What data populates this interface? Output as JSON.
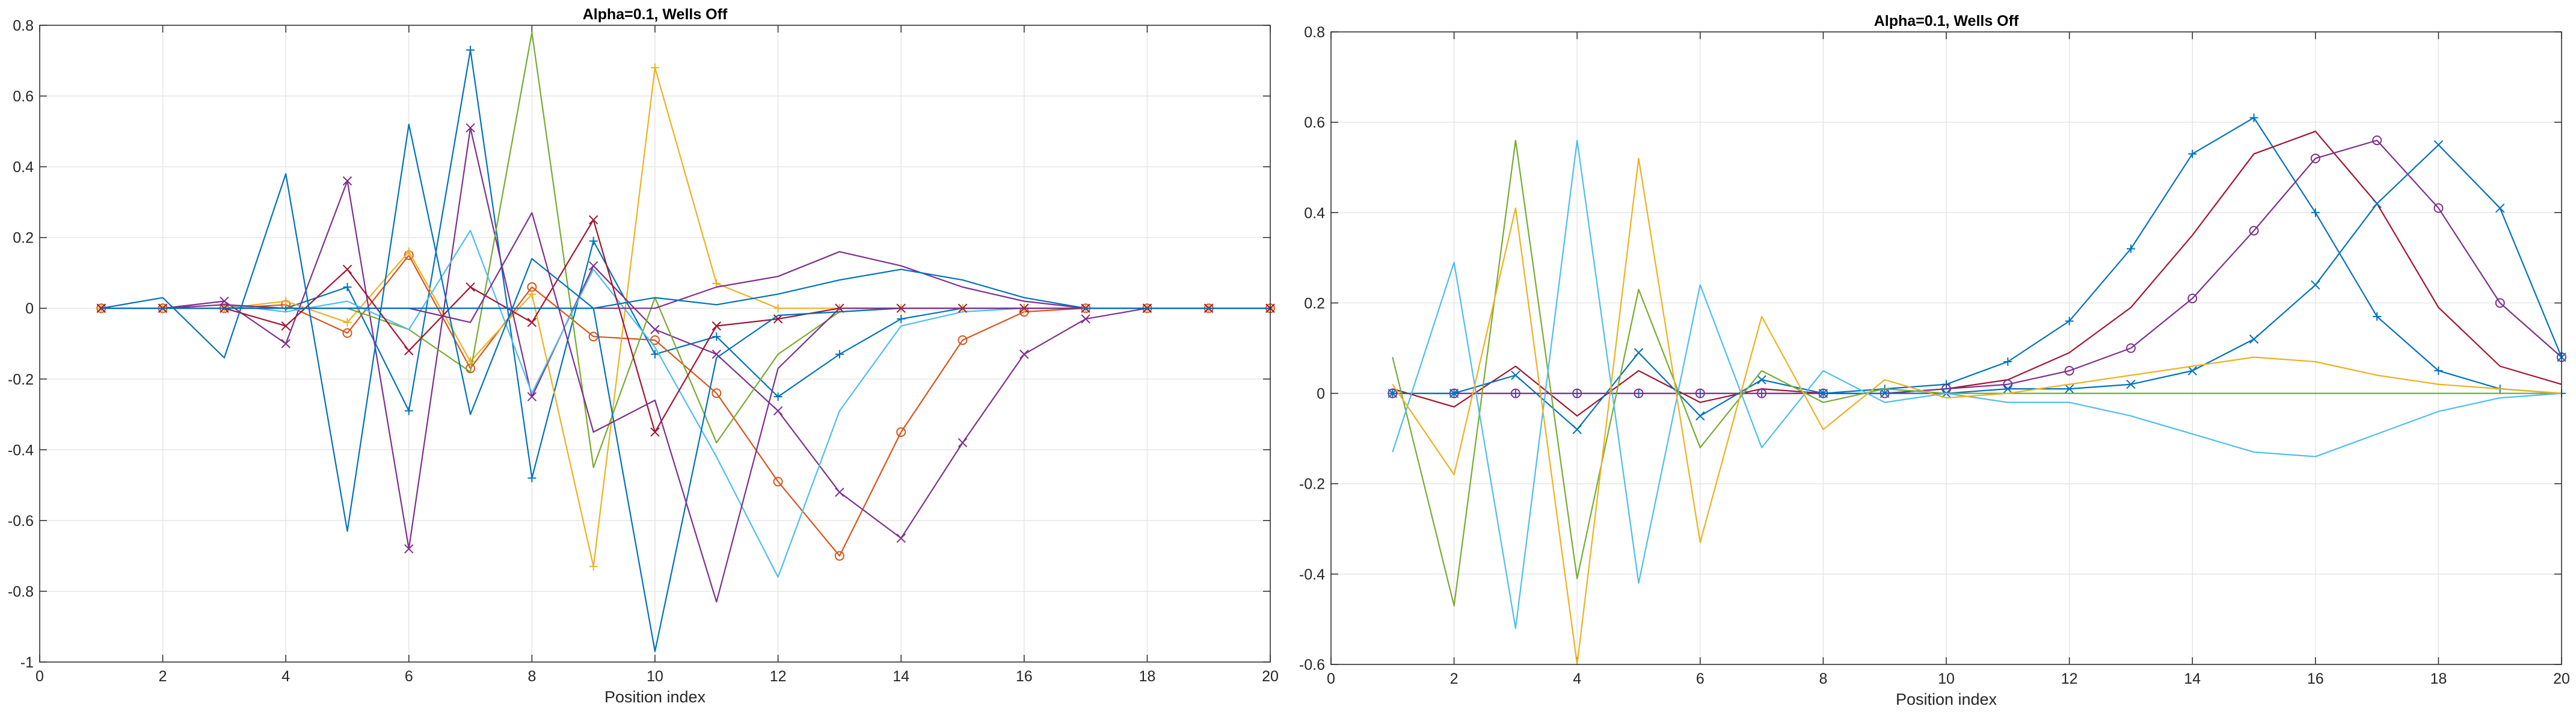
{
  "chart_data": [
    {
      "type": "line",
      "title": "Alpha=0.1, Wells Off",
      "xlabel": "Position index",
      "ylabel": "",
      "xlim": [
        0,
        20
      ],
      "ylim": [
        -1,
        0.8
      ],
      "xticks": [
        "0",
        "2",
        "4",
        "6",
        "8",
        "10",
        "12",
        "14",
        "16",
        "18",
        "20"
      ],
      "yticks": [
        "-1",
        "-0.8",
        "-0.6",
        "-0.4",
        "-0.2",
        "0",
        "0.2",
        "0.4",
        "0.6",
        "0.8"
      ],
      "grid": true,
      "x": [
        1,
        2,
        3,
        4,
        5,
        6,
        7,
        8,
        9,
        10,
        11,
        12,
        13,
        14,
        15,
        16,
        17,
        18,
        19,
        20
      ],
      "series": [
        {
          "color": "#0072BD",
          "marker": "plus",
          "values": [
            0,
            0,
            0,
            0,
            0.06,
            -0.29,
            0.73,
            -0.48,
            0.19,
            -0.13,
            -0.08,
            -0.25,
            -0.13,
            -0.03,
            0,
            0,
            0,
            0,
            0,
            0
          ]
        },
        {
          "color": "#D95319",
          "marker": "circle",
          "values": [
            0,
            0,
            0,
            0.01,
            -0.07,
            0.15,
            -0.17,
            0.06,
            -0.08,
            -0.09,
            -0.24,
            -0.49,
            -0.7,
            -0.35,
            -0.09,
            -0.01,
            0,
            0,
            0,
            0
          ]
        },
        {
          "color": "#EDB120",
          "marker": "plus",
          "values": [
            0,
            0,
            0,
            0.02,
            -0.04,
            0.16,
            -0.15,
            0.04,
            -0.73,
            0.68,
            0.07,
            0,
            0,
            0,
            0,
            0,
            0,
            0,
            0,
            0
          ]
        },
        {
          "color": "#7E2F8E",
          "marker": "x",
          "values": [
            0,
            0,
            0.02,
            -0.1,
            0.36,
            -0.68,
            0.51,
            -0.25,
            0.12,
            -0.06,
            -0.13,
            -0.29,
            -0.52,
            -0.65,
            -0.38,
            -0.13,
            -0.03,
            0,
            0,
            0
          ]
        },
        {
          "color": "#77AC30",
          "marker": "none",
          "values": [
            0,
            0,
            0,
            0,
            0,
            -0.06,
            -0.18,
            0.78,
            -0.45,
            0.03,
            -0.38,
            -0.13,
            -0.01,
            0,
            0,
            0,
            0,
            0,
            0,
            0
          ]
        },
        {
          "color": "#4DBEEE",
          "marker": "none",
          "values": [
            0,
            0,
            0.01,
            -0.01,
            0.02,
            -0.06,
            0.22,
            -0.24,
            0.11,
            -0.11,
            -0.42,
            -0.76,
            -0.29,
            -0.05,
            -0.01,
            0,
            0,
            0,
            0,
            0
          ]
        },
        {
          "color": "#A2142F",
          "marker": "x",
          "values": [
            0,
            0,
            0,
            -0.05,
            0.11,
            -0.12,
            0.06,
            -0.04,
            0.25,
            -0.35,
            -0.05,
            -0.03,
            0,
            0,
            0,
            0,
            0,
            0,
            0,
            0
          ]
        },
        {
          "color": "#0072BD",
          "marker": "none",
          "values": [
            0,
            0.03,
            -0.14,
            0.38,
            -0.63,
            0.52,
            -0.3,
            0.14,
            0,
            -0.97,
            -0.14,
            -0.02,
            -0.01,
            0,
            0,
            0,
            0,
            0,
            0,
            0
          ]
        },
        {
          "color": "#7E2F8E",
          "marker": "none",
          "values": [
            0,
            0,
            0.01,
            0,
            0,
            0,
            -0.04,
            0.27,
            -0.35,
            -0.26,
            -0.83,
            -0.17,
            0,
            0,
            0,
            0,
            0,
            0,
            0,
            0
          ]
        },
        {
          "color": "#7E2F8E",
          "marker": "none",
          "values": [
            0,
            0,
            0,
            0,
            0,
            0,
            0,
            0,
            0,
            0,
            0.06,
            0.09,
            0.16,
            0.12,
            0.06,
            0.02,
            0,
            0,
            0,
            0
          ]
        },
        {
          "color": "#0072BD",
          "marker": "none",
          "values": [
            0,
            0,
            0,
            0,
            0,
            0,
            0,
            0,
            0,
            0.03,
            0.01,
            0.04,
            0.08,
            0.11,
            0.08,
            0.03,
            0,
            0,
            0,
            0
          ]
        }
      ]
    },
    {
      "type": "line",
      "title": "Alpha=0.1, Wells Off",
      "xlabel": "Position index",
      "ylabel": "",
      "xlim": [
        0,
        20
      ],
      "ylim": [
        -0.6,
        0.8
      ],
      "xticks": [
        "0",
        "2",
        "4",
        "6",
        "8",
        "10",
        "12",
        "14",
        "16",
        "18",
        "20"
      ],
      "yticks": [
        "-0.6",
        "-0.4",
        "-0.2",
        "0",
        "0.2",
        "0.4",
        "0.6",
        "0.8"
      ],
      "grid": true,
      "x": [
        1,
        2,
        3,
        4,
        5,
        6,
        7,
        8,
        9,
        10,
        11,
        12,
        13,
        14,
        15,
        16,
        17,
        18,
        19,
        20
      ],
      "series": [
        {
          "color": "#0072BD",
          "marker": "plus",
          "values": [
            0,
            0,
            0,
            0,
            0,
            0,
            0,
            0,
            0.01,
            0.02,
            0.07,
            0.16,
            0.32,
            0.53,
            0.61,
            0.4,
            0.17,
            0.05,
            0.01,
            0
          ]
        },
        {
          "color": "#A2142F",
          "marker": "none",
          "values": [
            0.01,
            -0.03,
            0.06,
            -0.05,
            0.05,
            -0.02,
            0.01,
            0,
            0,
            0.01,
            0.03,
            0.09,
            0.19,
            0.35,
            0.53,
            0.58,
            0.42,
            0.19,
            0.06,
            0.02
          ]
        },
        {
          "color": "#7E2F8E",
          "marker": "circle",
          "values": [
            0,
            0,
            0,
            0,
            0,
            0,
            0,
            0,
            0,
            0.01,
            0.02,
            0.05,
            0.1,
            0.21,
            0.36,
            0.52,
            0.56,
            0.41,
            0.2,
            0.08
          ]
        },
        {
          "color": "#0072BD",
          "marker": "x",
          "values": [
            0,
            0,
            0.04,
            -0.08,
            0.09,
            -0.05,
            0.03,
            0,
            0,
            0,
            0.01,
            0.01,
            0.02,
            0.05,
            0.12,
            0.24,
            0.42,
            0.55,
            0.41,
            0.08
          ]
        },
        {
          "color": "#77AC30",
          "marker": "none",
          "values": [
            0.08,
            -0.47,
            0.56,
            -0.41,
            0.23,
            -0.12,
            0.05,
            -0.02,
            0.01,
            0,
            0,
            0,
            0,
            0,
            0,
            0,
            0,
            0,
            0,
            0
          ]
        },
        {
          "color": "#4DBEEE",
          "marker": "none",
          "values": [
            -0.13,
            0.29,
            -0.52,
            0.56,
            -0.42,
            0.24,
            -0.12,
            0.05,
            -0.02,
            0,
            -0.02,
            -0.02,
            -0.05,
            -0.09,
            -0.13,
            -0.14,
            -0.09,
            -0.04,
            -0.01,
            0
          ]
        },
        {
          "color": "#EDB120",
          "marker": "none",
          "values": [
            0.02,
            -0.18,
            0.41,
            -0.6,
            0.52,
            -0.33,
            0.17,
            -0.08,
            0.03,
            -0.01,
            0,
            0.02,
            0.04,
            0.06,
            0.08,
            0.07,
            0.04,
            0.02,
            0.01,
            0
          ]
        }
      ]
    }
  ]
}
